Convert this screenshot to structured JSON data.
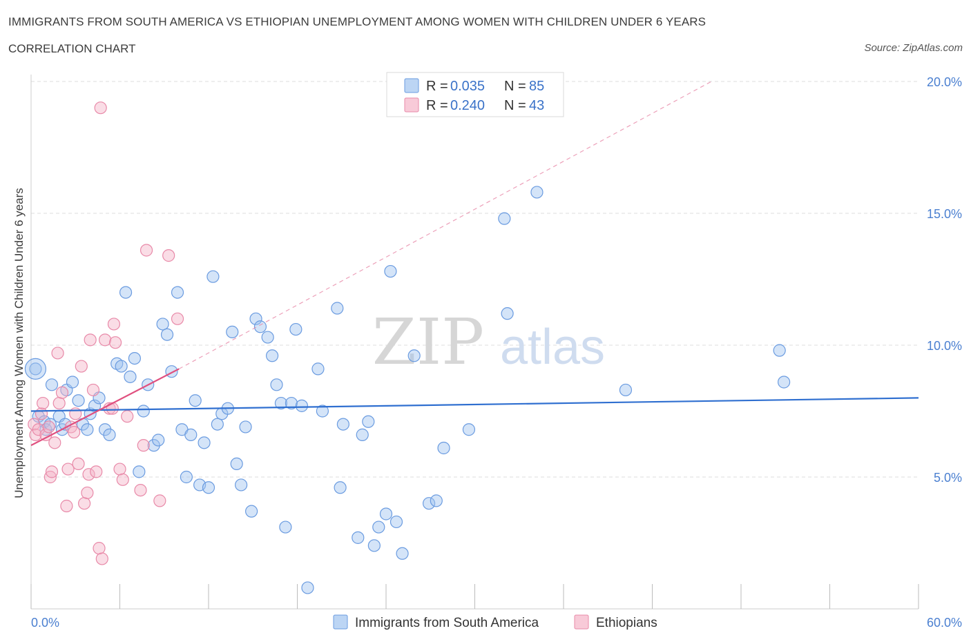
{
  "header": {
    "title": "IMMIGRANTS FROM SOUTH AMERICA VS ETHIOPIAN UNEMPLOYMENT AMONG WOMEN WITH CHILDREN UNDER 6 YEARS",
    "subtitle": "CORRELATION CHART",
    "source": "Source: ZipAtlas.com"
  },
  "watermark": {
    "zip": "ZIP",
    "atlas": "atlas"
  },
  "colors": {
    "blue": "#6a9be0",
    "blue_fill": "rgba(160,195,240,0.45)",
    "blue_line": "#2f6fd0",
    "pink": "#e889a8",
    "pink_fill": "rgba(245,180,200,0.45)",
    "pink_line": "#e0507f",
    "grid": "#dddddd",
    "tick_label": "#4a7fd0"
  },
  "legend": {
    "items": [
      {
        "r_label": "R = ",
        "r_value": "0.035",
        "n_label": "N = ",
        "n_value": "85"
      },
      {
        "r_label": "R = ",
        "r_value": "0.240",
        "n_label": "N = ",
        "n_value": "43"
      }
    ]
  },
  "chart_data": {
    "type": "scatter",
    "title": "IMMIGRANTS FROM SOUTH AMERICA VS ETHIOPIAN UNEMPLOYMENT AMONG WOMEN WITH CHILDREN UNDER 6 YEARS",
    "xlabel": "",
    "ylabel": "Unemployment Among Women with Children Under 6 years",
    "xlim": [
      0,
      60
    ],
    "ylim": [
      0,
      20
    ],
    "x_tick_labels": [
      "0.0%",
      "60.0%"
    ],
    "y_ticks": [
      5,
      10,
      15,
      20
    ],
    "y_tick_labels": [
      "5.0%",
      "10.0%",
      "15.0%",
      "20.0%"
    ],
    "grid": true,
    "legend_position": "top-center",
    "series": [
      {
        "name": "Immigrants from South America",
        "R": 0.035,
        "N": 85,
        "trend": {
          "x": [
            0,
            60
          ],
          "y": [
            7.5,
            8.0
          ],
          "style": "solid"
        },
        "points": [
          [
            0.3,
            9.1
          ],
          [
            0.5,
            7.3
          ],
          [
            0.9,
            7.1
          ],
          [
            1.0,
            6.8
          ],
          [
            1.3,
            7.0
          ],
          [
            1.4,
            8.5
          ],
          [
            1.9,
            7.3
          ],
          [
            2.1,
            6.8
          ],
          [
            2.3,
            7.0
          ],
          [
            2.4,
            8.3
          ],
          [
            2.8,
            8.6
          ],
          [
            3.2,
            7.9
          ],
          [
            3.5,
            7.0
          ],
          [
            3.8,
            6.8
          ],
          [
            4.0,
            7.4
          ],
          [
            4.3,
            7.7
          ],
          [
            4.6,
            8.0
          ],
          [
            5.0,
            6.8
          ],
          [
            5.3,
            6.6
          ],
          [
            5.8,
            9.3
          ],
          [
            6.1,
            9.2
          ],
          [
            6.4,
            12.0
          ],
          [
            6.7,
            8.8
          ],
          [
            7.0,
            9.5
          ],
          [
            7.3,
            5.2
          ],
          [
            7.6,
            7.5
          ],
          [
            7.9,
            8.5
          ],
          [
            8.3,
            6.2
          ],
          [
            8.6,
            6.4
          ],
          [
            8.9,
            10.8
          ],
          [
            9.2,
            10.4
          ],
          [
            9.5,
            9.0
          ],
          [
            9.9,
            12.0
          ],
          [
            10.2,
            6.8
          ],
          [
            10.5,
            5.0
          ],
          [
            10.8,
            6.6
          ],
          [
            11.1,
            7.9
          ],
          [
            11.4,
            4.7
          ],
          [
            11.7,
            6.3
          ],
          [
            12.0,
            4.6
          ],
          [
            12.3,
            12.6
          ],
          [
            12.6,
            7.0
          ],
          [
            12.9,
            7.4
          ],
          [
            13.3,
            7.6
          ],
          [
            13.6,
            10.5
          ],
          [
            13.9,
            5.5
          ],
          [
            14.2,
            4.7
          ],
          [
            14.5,
            6.9
          ],
          [
            14.9,
            3.7
          ],
          [
            15.2,
            11.0
          ],
          [
            15.5,
            10.7
          ],
          [
            16.0,
            10.3
          ],
          [
            16.3,
            9.6
          ],
          [
            16.6,
            8.5
          ],
          [
            16.9,
            7.8
          ],
          [
            17.2,
            3.1
          ],
          [
            17.6,
            7.8
          ],
          [
            17.9,
            10.6
          ],
          [
            18.3,
            7.7
          ],
          [
            18.7,
            0.8
          ],
          [
            19.4,
            9.1
          ],
          [
            19.7,
            7.5
          ],
          [
            20.7,
            11.4
          ],
          [
            20.9,
            4.6
          ],
          [
            21.1,
            7.0
          ],
          [
            22.1,
            2.7
          ],
          [
            22.4,
            6.6
          ],
          [
            22.8,
            7.1
          ],
          [
            23.2,
            2.4
          ],
          [
            23.5,
            3.1
          ],
          [
            24.0,
            3.6
          ],
          [
            24.3,
            12.8
          ],
          [
            24.7,
            3.3
          ],
          [
            25.1,
            2.1
          ],
          [
            25.9,
            9.6
          ],
          [
            26.9,
            4.0
          ],
          [
            27.4,
            4.1
          ],
          [
            27.9,
            6.1
          ],
          [
            29.6,
            6.8
          ],
          [
            32.0,
            14.8
          ],
          [
            32.2,
            11.2
          ],
          [
            34.2,
            15.8
          ],
          [
            40.2,
            8.3
          ],
          [
            50.6,
            9.8
          ],
          [
            50.9,
            8.6
          ]
        ]
      },
      {
        "name": "Ethiopians",
        "R": 0.24,
        "N": 43,
        "trend": {
          "x": [
            0,
            10
          ],
          "y": [
            6.2,
            9.1
          ],
          "style": "solid"
        },
        "trend_extended": {
          "x": [
            10,
            46
          ],
          "y": [
            9.1,
            20.0
          ],
          "style": "dashed"
        },
        "points": [
          [
            0.2,
            7.0
          ],
          [
            0.3,
            6.6
          ],
          [
            0.5,
            6.8
          ],
          [
            0.7,
            7.4
          ],
          [
            0.8,
            7.8
          ],
          [
            1.0,
            6.6
          ],
          [
            1.2,
            6.9
          ],
          [
            1.3,
            5.0
          ],
          [
            1.4,
            5.2
          ],
          [
            1.6,
            6.3
          ],
          [
            1.8,
            9.7
          ],
          [
            1.9,
            7.8
          ],
          [
            2.1,
            8.2
          ],
          [
            2.4,
            3.9
          ],
          [
            2.5,
            5.3
          ],
          [
            2.7,
            6.9
          ],
          [
            2.9,
            6.7
          ],
          [
            3.0,
            7.4
          ],
          [
            3.2,
            5.5
          ],
          [
            3.4,
            9.2
          ],
          [
            3.6,
            4.0
          ],
          [
            3.8,
            4.4
          ],
          [
            3.9,
            5.1
          ],
          [
            4.0,
            10.2
          ],
          [
            4.2,
            8.3
          ],
          [
            4.4,
            5.2
          ],
          [
            4.6,
            2.3
          ],
          [
            4.7,
            19.0
          ],
          [
            4.8,
            1.9
          ],
          [
            5.0,
            10.2
          ],
          [
            5.3,
            7.6
          ],
          [
            5.5,
            7.6
          ],
          [
            5.7,
            10.1
          ],
          [
            5.6,
            10.8
          ],
          [
            6.0,
            5.3
          ],
          [
            6.2,
            4.9
          ],
          [
            6.5,
            7.3
          ],
          [
            7.4,
            4.5
          ],
          [
            7.6,
            6.2
          ],
          [
            7.8,
            13.6
          ],
          [
            8.7,
            4.1
          ],
          [
            9.3,
            13.4
          ],
          [
            9.9,
            11.0
          ]
        ]
      }
    ]
  },
  "bottom_legend": [
    {
      "label": "Immigrants from South America"
    },
    {
      "label": "Ethiopians"
    }
  ]
}
